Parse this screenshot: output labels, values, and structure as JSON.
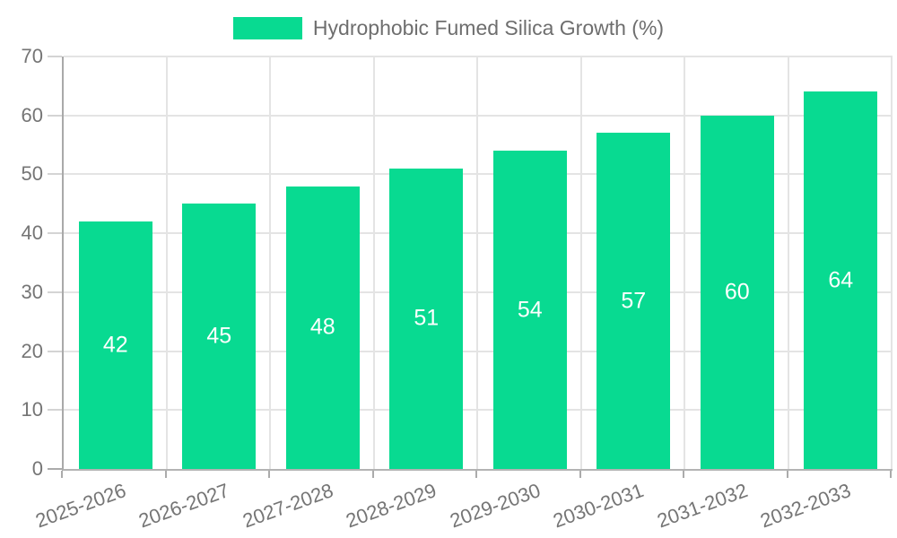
{
  "chart_data": {
    "type": "bar",
    "title": "Hydrophobic Fumed Silica Growth (%)",
    "categories": [
      "2025-2026",
      "2026-2027",
      "2027-2028",
      "2028-2029",
      "2029-2030",
      "2030-2031",
      "2031-2032",
      "2032-2033"
    ],
    "series": [
      {
        "name": "Hydrophobic Fumed Silica Growth (%)",
        "values": [
          42,
          45,
          48,
          51,
          54,
          57,
          60,
          64
        ]
      }
    ],
    "values": [
      42,
      45,
      48,
      51,
      54,
      57,
      60,
      64
    ],
    "xlabel": "",
    "ylabel": "",
    "ylim": [
      0,
      70
    ],
    "yticks": [
      0,
      10,
      20,
      30,
      40,
      50,
      60,
      70
    ],
    "grid": true,
    "legend_position": "top-center",
    "x_label_rotation_deg": -20,
    "bar_value_label_color": "#FFFFFF",
    "colors": {
      "bar": "#08DA91",
      "axis_label": "#757575",
      "legend_text": "#6E6E6E",
      "grid_line": "#E4E4E4",
      "axis_line": "#ABABAB"
    }
  }
}
